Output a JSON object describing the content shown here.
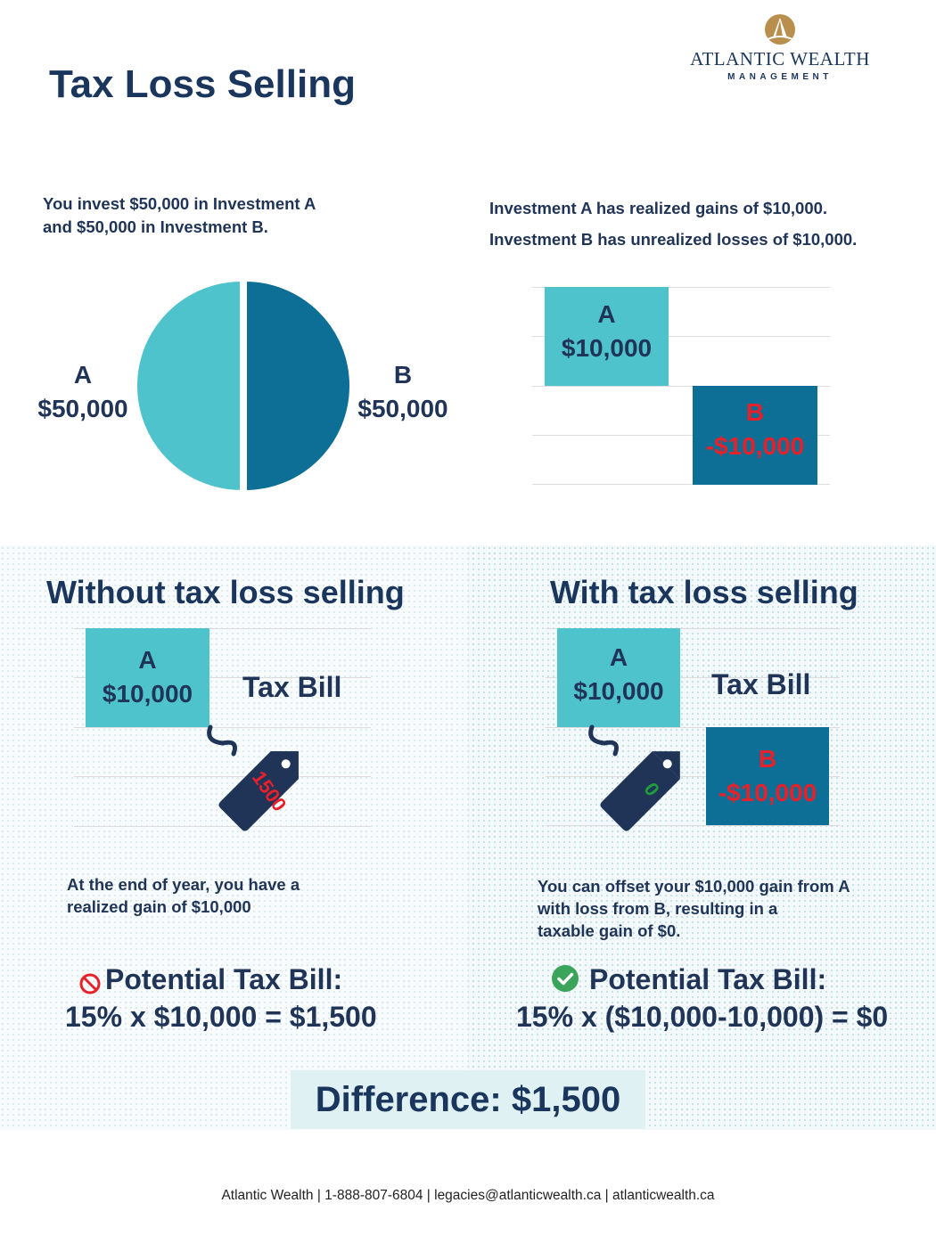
{
  "page": {
    "title": "Tax Loss Selling"
  },
  "logo": {
    "name": "ATLANTIC WEALTH",
    "sub": "MANAGEMENT"
  },
  "intro_left": {
    "line1": "You invest $50,000 in Investment A",
    "line2": "and $50,000 in Investment B."
  },
  "intro_right": {
    "line1": "Investment A has realized gains of $10,000.",
    "line2": "Investment B has unrealized losses of $10,000."
  },
  "pie": {
    "a_label": "A",
    "a_value": "$50,000",
    "b_label": "B",
    "b_value": "$50,000",
    "a_color": "#4fc3cb",
    "b_color": "#0d6e96"
  },
  "bars_top": {
    "a_label": "A",
    "a_value": "$10,000",
    "b_label": "B",
    "b_value": "-$10,000"
  },
  "without": {
    "title": "Without tax loss selling",
    "bar_label": "A",
    "bar_value": "$10,000",
    "tax_bill_label": "Tax Bill",
    "tag_value": "1500",
    "note_line1": "At the end of year, you have a",
    "note_line2": "realized gain of $10,000",
    "potential_label": "Potential Tax Bill:",
    "formula": "15% x $10,000 = $1,500",
    "icon": "no-icon"
  },
  "with": {
    "title": "With tax loss selling",
    "bar_a_label": "A",
    "bar_a_value": "$10,000",
    "bar_b_label": "B",
    "bar_b_value": "-$10,000",
    "tax_bill_label": "Tax Bill",
    "tag_value": "0",
    "note_line1": "You can offset your $10,000 gain from A",
    "note_line2": "with loss from B, resulting in a",
    "note_line3": "taxable gain of $0.",
    "potential_label": "Potential Tax Bill:",
    "formula": "15% x ($10,000-10,000) = $0",
    "icon": "check-icon"
  },
  "difference": "Difference: $1,500",
  "footer": "Atlantic Wealth | 1-888-807-6804 | legacies@atlanticwealth.ca | atlanticwealth.ca"
}
